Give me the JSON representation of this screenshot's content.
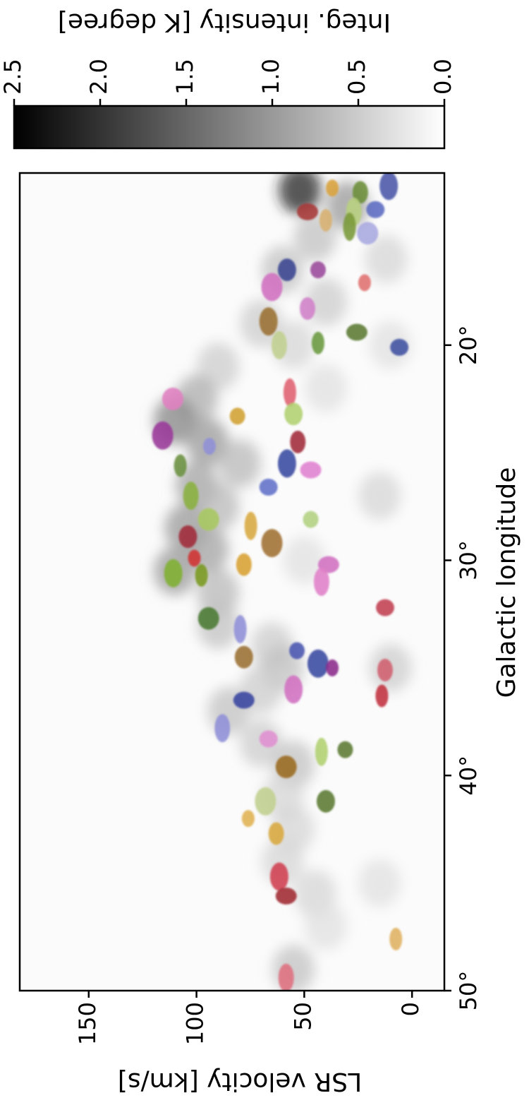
{
  "chart_data": {
    "type": "scatter",
    "xlabel": "Galactic longitude",
    "ylabel": "LSR velocity [km/s]",
    "xlim": [
      50,
      12
    ],
    "ylim": [
      -15,
      182
    ],
    "xticks": [
      {
        "value": 20,
        "label": "20°"
      },
      {
        "value": 30,
        "label": "30°"
      },
      {
        "value": 40,
        "label": "40°"
      },
      {
        "value": 50,
        "label": "50°"
      }
    ],
    "yticks": [
      0,
      50,
      100,
      150
    ],
    "colorbar": {
      "label": "Integ. intensity [K degree]",
      "lim": [
        0,
        2.5
      ],
      "ticks": [
        {
          "value": 0,
          "label": "0.0"
        },
        {
          "value": 0.5,
          "label": "0.5"
        },
        {
          "value": 1,
          "label": "1.0"
        },
        {
          "value": 1.5,
          "label": "1.5"
        },
        {
          "value": 2,
          "label": "2.0"
        },
        {
          "value": 2.5,
          "label": "2.5"
        }
      ]
    },
    "emission": {
      "x": [
        12.8,
        13.5,
        15,
        16.5,
        18,
        19,
        20,
        21,
        22.5,
        23.5,
        24.5,
        25.5,
        26.5,
        27.5,
        28.5,
        29.5,
        30.5,
        31.5,
        33,
        34,
        35,
        36,
        37,
        38.5,
        39.5,
        41,
        42.5,
        44,
        45.5,
        47,
        49,
        30,
        22,
        27,
        35,
        45,
        20,
        16
      ],
      "y": [
        52,
        30,
        45,
        60,
        40,
        70,
        55,
        90,
        100,
        110,
        95,
        80,
        100,
        90,
        105,
        95,
        110,
        90,
        90,
        65,
        60,
        70,
        85,
        70,
        55,
        60,
        55,
        60,
        45,
        40,
        55,
        50,
        40,
        15,
        10,
        15,
        10,
        12
      ],
      "values": [
        2.2,
        1.0,
        0.6,
        0.6,
        0.5,
        0.5,
        0.4,
        0.5,
        0.8,
        1.2,
        1.0,
        0.7,
        0.9,
        0.7,
        1.0,
        0.9,
        1.0,
        0.7,
        0.6,
        0.5,
        0.6,
        0.5,
        0.6,
        0.5,
        0.6,
        0.4,
        0.4,
        0.4,
        0.4,
        0.3,
        0.6,
        0.3,
        0.3,
        0.4,
        0.5,
        0.3,
        0.3,
        0.4
      ]
    },
    "series": [
      {
        "x": [
          12.7,
          12.9,
          12.6,
          13.8,
          14.2,
          13.8,
          13.7,
          14.8,
          14.5,
          16.5,
          16.5,
          17.3,
          17.1,
          18.3,
          18.9,
          19.4,
          19.9,
          20.0,
          20.1,
          22.5,
          22.2,
          23.3,
          23.2,
          24.2,
          24.7,
          24.5,
          25.5,
          25.8,
          25.6,
          27.0,
          26.6,
          28.1,
          28.4,
          28.1,
          28.9,
          29.2,
          29.9,
          30.2,
          30.6,
          30.2,
          30.7,
          31.0,
          32.2,
          32.7,
          33.2,
          34.2,
          34.5,
          34.8,
          35.0,
          35.1,
          36.0,
          36.5,
          36.3,
          37.8,
          38.3,
          39.6,
          38.9,
          38.8,
          41.2,
          41.2,
          42.0,
          42.7,
          44.7,
          45.6,
          47.6,
          49.4
        ],
        "values": [
          37.0,
          24.0,
          10.8,
          48.5,
          40.0,
          27.0,
          17.0,
          20.6,
          29.0,
          43.6,
          58.0,
          65.0,
          22.0,
          48.5,
          66.6,
          25.6,
          43.6,
          61.6,
          5.9,
          111.0,
          56.7,
          81.0,
          55.0,
          115.7,
          94.0,
          53.0,
          58.0,
          47.0,
          107.5,
          102.6,
          66.6,
          94.4,
          74.8,
          47.0,
          104.0,
          65.0,
          101.0,
          78.0,
          110.8,
          38.7,
          97.7,
          42.0,
          12.5,
          94.4,
          79.7,
          53.4,
          78.0,
          43.6,
          37.0,
          12.5,
          55.0,
          78.0,
          14.0,
          88.0,
          66.6,
          58.4,
          42.0,
          31.0,
          40.0,
          68.0,
          76.0,
          63.0,
          61.6,
          58.4,
          7.5,
          58.4
        ],
        "colors": [
          "#d9a23c",
          "#6b8e3a",
          "#4a55a8",
          "#a83a3a",
          "#d8b070",
          "#b8d080",
          "#5a6ac0",
          "#a8a8e0",
          "#7a9a3a",
          "#9a4a9a",
          "#3a4590",
          "#d070c0",
          "#e07070",
          "#d080c8",
          "#9a7030",
          "#5a7a30",
          "#6a9a40",
          "#c0d090",
          "#4050a0",
          "#e080c0",
          "#e06070",
          "#d0a030",
          "#b0d070",
          "#9a3a9a",
          "#9090d8",
          "#a02a3a",
          "#3a4aa0",
          "#e080d0",
          "#6a9040",
          "#8ab040",
          "#6070c8",
          "#a8c860",
          "#d8a840",
          "#b0d080",
          "#a02a3a",
          "#a07030",
          "#d03030",
          "#d8a030",
          "#80b030",
          "#d070c0",
          "#7a9a20",
          "#e080c8",
          "#c04050",
          "#4a7a30",
          "#9090d8",
          "#4a55b0",
          "#9a7030",
          "#3a4aa0",
          "#8a2a8a",
          "#d06070",
          "#d070c0",
          "#3a45a0",
          "#c03040",
          "#9090d8",
          "#e090d0",
          "#9a6a20",
          "#b0d070",
          "#5a7a30",
          "#5a7a30",
          "#c0d090",
          "#e0b050",
          "#d8a840",
          "#d04050",
          "#a02a30",
          "#e0b060",
          "#e07080"
        ]
      }
    ]
  }
}
